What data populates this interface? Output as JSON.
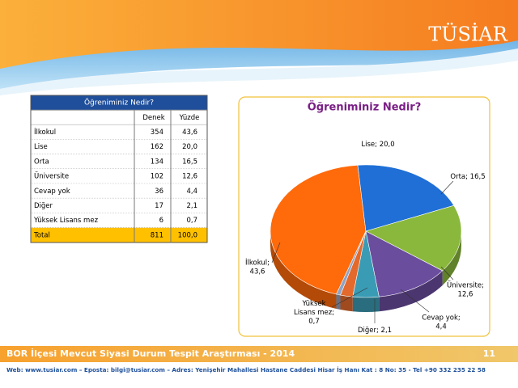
{
  "header": {
    "logo": "TÜSİAR"
  },
  "table": {
    "title": "Öğreniminiz Nedir?",
    "headers": [
      "Denek",
      "Yüzde"
    ],
    "rows": [
      [
        "İlkokul",
        "354",
        "43,6"
      ],
      [
        "Lise",
        "162",
        "20,0"
      ],
      [
        "Orta",
        "134",
        "16,5"
      ],
      [
        "Üniversite",
        "102",
        "12,6"
      ],
      [
        "Cevap yok",
        "36",
        "4,4"
      ],
      [
        "Diğer",
        "17",
        "2,1"
      ],
      [
        "Yüksek Lisans mez",
        "6",
        "0,7"
      ]
    ],
    "total": [
      "Total",
      "811",
      "100,0"
    ]
  },
  "chart_data": {
    "type": "pie",
    "title": "Öğreniminiz Nedir?",
    "categories": [
      "İlkokul",
      "Lise",
      "Orta",
      "Üniversite",
      "Cevap yok",
      "Diğer",
      "Yüksek Lisans mez"
    ],
    "values": [
      43.6,
      20.0,
      16.5,
      12.6,
      4.4,
      2.1,
      0.7
    ],
    "value_labels": [
      "İlkokul;\n43,6",
      "Lise; 20,0",
      "Orta; 16,5",
      "Üniversite;\n12,6",
      "Cevap yok;\n4,4",
      "Diğer; 2,1",
      "Yüksek\nLisans mez;\n0,7"
    ],
    "colors": [
      "#ff6a0a",
      "#1f6fd6",
      "#8ab83c",
      "#6b4d9e",
      "#3a9bb4",
      "#e4692c",
      "#8fa3c4"
    ]
  },
  "footer": {
    "title": "BOR İlçesi Mevcut Siyasi Durum Tespit Araştırması - 2014",
    "page": "11",
    "contact": "Web: www.tusiar.com – Eposta: bilgi@tusiar.com – Adres: Yenişehir Mahallesi Hastane Caddesi Hisar İş Hanı Kat : 8 No: 35 - Tel +90 332 235 22 58"
  }
}
